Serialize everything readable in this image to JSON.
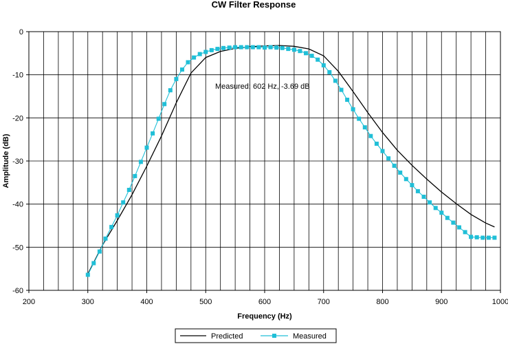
{
  "chart_data": {
    "type": "line",
    "title": "CW Filter Response",
    "xlabel": "Frequency (Hz)",
    "ylabel": "Amplitude (dB)",
    "xlim": [
      200,
      1000
    ],
    "ylim": [
      -60,
      0
    ],
    "x_ticks": [
      200,
      300,
      400,
      500,
      600,
      700,
      800,
      900,
      1000
    ],
    "y_ticks": [
      0,
      -10,
      -20,
      -30,
      -40,
      -50,
      -60
    ],
    "x_tick_labels": [
      "200",
      "300",
      "400",
      "500",
      "600",
      "700",
      "800",
      "900",
      "1000"
    ],
    "y_tick_labels": [
      "0",
      "-10",
      "-20",
      "-30",
      "-40",
      "-50",
      "-60"
    ],
    "grid": true,
    "legend_position": "bottom",
    "annotation": "Measured: 602 Hz, -3.69 dB",
    "series": [
      {
        "name": "Predicted",
        "color": "#000000",
        "marker": "none",
        "x": [
          300,
          325,
          350,
          375,
          400,
          425,
          450,
          475,
          500,
          525,
          550,
          575,
          600,
          625,
          650,
          675,
          700,
          725,
          750,
          775,
          800,
          825,
          850,
          875,
          900,
          925,
          950,
          975,
          990
        ],
        "y": [
          -56.2,
          -49.5,
          -43.8,
          -37.8,
          -31.2,
          -24.2,
          -16.5,
          -9.6,
          -6.0,
          -4.6,
          -3.9,
          -3.5,
          -3.3,
          -3.2,
          -3.4,
          -4.0,
          -5.6,
          -9.2,
          -13.9,
          -18.8,
          -23.4,
          -27.5,
          -31.0,
          -34.2,
          -37.2,
          -39.9,
          -42.4,
          -44.4,
          -45.3
        ]
      },
      {
        "name": "Measured",
        "color": "#20bfd7",
        "marker": "square",
        "x": [
          300,
          310,
          320,
          330,
          340,
          350,
          360,
          370,
          380,
          390,
          400,
          410,
          420,
          430,
          440,
          450,
          460,
          470,
          480,
          490,
          500,
          510,
          520,
          530,
          540,
          550,
          560,
          570,
          580,
          590,
          600,
          610,
          620,
          630,
          640,
          650,
          660,
          670,
          680,
          690,
          700,
          710,
          720,
          730,
          740,
          750,
          760,
          770,
          780,
          790,
          800,
          810,
          820,
          830,
          840,
          850,
          860,
          870,
          880,
          890,
          900,
          910,
          920,
          930,
          940,
          950,
          960,
          970,
          980,
          990
        ],
        "y": [
          -56.4,
          -53.7,
          -51.0,
          -48.0,
          -45.3,
          -42.6,
          -39.6,
          -36.7,
          -33.5,
          -30.2,
          -26.9,
          -23.6,
          -20.2,
          -16.8,
          -13.6,
          -11.0,
          -8.8,
          -7.1,
          -6.0,
          -5.2,
          -4.7,
          -4.3,
          -4.0,
          -3.8,
          -3.7,
          -3.6,
          -3.6,
          -3.6,
          -3.6,
          -3.6,
          -3.69,
          -3.6,
          -3.7,
          -3.8,
          -4.0,
          -4.2,
          -4.5,
          -5.0,
          -5.6,
          -6.5,
          -7.8,
          -9.4,
          -11.4,
          -13.5,
          -15.8,
          -18.0,
          -20.2,
          -22.2,
          -24.2,
          -26.0,
          -27.7,
          -29.4,
          -31.1,
          -32.7,
          -34.2,
          -35.6,
          -37.0,
          -38.3,
          -39.6,
          -40.9,
          -42.0,
          -43.2,
          -44.3,
          -45.4,
          -46.5,
          -47.6,
          -47.7,
          -47.8,
          -47.8,
          -47.8
        ]
      }
    ]
  }
}
